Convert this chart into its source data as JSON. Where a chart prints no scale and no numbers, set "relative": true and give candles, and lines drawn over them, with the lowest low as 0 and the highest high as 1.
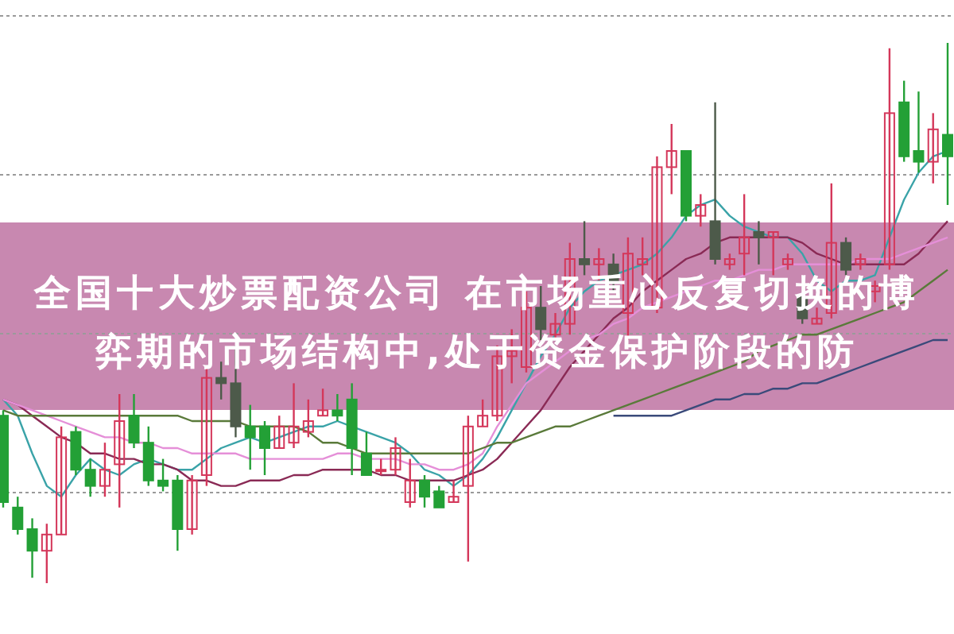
{
  "chart_data": {
    "type": "candlestick",
    "relative": true,
    "grid": "y",
    "title": "全国十大炒票配资公司 在市场重心反复切换的博弈期的市场结构中,处于资金保护阶段的防",
    "categories": [
      null,
      null,
      null,
      null,
      null,
      null,
      null,
      null,
      null,
      null,
      null,
      null,
      null,
      null,
      null,
      null,
      null,
      null,
      null,
      null,
      null,
      null,
      null,
      null,
      null,
      null,
      null,
      null,
      null,
      null,
      null,
      null,
      null,
      null,
      null,
      null,
      null,
      null,
      null,
      null,
      null,
      null,
      null,
      null,
      null,
      null,
      null,
      null,
      null,
      null,
      null,
      null,
      null,
      null,
      null,
      null,
      null,
      null,
      null,
      null,
      null,
      null,
      null,
      null,
      null,
      null
    ],
    "ohlc": [
      [
        0.31,
        0.32,
        0.14,
        0.15
      ],
      [
        0.14,
        0.16,
        0.09,
        0.1
      ],
      [
        0.1,
        0.12,
        0.01,
        0.06
      ],
      [
        0.06,
        0.11,
        0.0,
        0.09
      ],
      [
        0.09,
        0.29,
        0.09,
        0.27
      ],
      [
        0.28,
        0.29,
        0.2,
        0.21
      ],
      [
        0.21,
        0.23,
        0.16,
        0.18
      ],
      [
        0.18,
        0.26,
        0.16,
        0.21
      ],
      [
        0.22,
        0.35,
        0.14,
        0.3
      ],
      [
        0.31,
        0.35,
        0.25,
        0.26
      ],
      [
        0.26,
        0.29,
        0.18,
        0.19
      ],
      [
        0.19,
        0.23,
        0.17,
        0.18
      ],
      [
        0.19,
        0.2,
        0.06,
        0.1
      ],
      [
        0.1,
        0.2,
        0.09,
        0.19
      ],
      [
        0.2,
        0.4,
        0.18,
        0.38
      ],
      [
        0.38,
        0.41,
        0.34,
        0.37
      ],
      [
        0.37,
        0.44,
        0.27,
        0.29
      ],
      [
        0.29,
        0.33,
        0.21,
        0.27
      ],
      [
        0.29,
        0.3,
        0.2,
        0.25
      ],
      [
        0.25,
        0.31,
        0.25,
        0.29
      ],
      [
        0.26,
        0.37,
        0.25,
        0.29
      ],
      [
        0.28,
        0.34,
        0.27,
        0.3
      ],
      [
        0.31,
        0.36,
        0.31,
        0.32
      ],
      [
        0.32,
        0.35,
        0.3,
        0.31
      ],
      [
        0.34,
        0.37,
        0.2,
        0.25
      ],
      [
        0.24,
        0.28,
        0.2,
        0.2
      ],
      [
        0.21,
        0.23,
        0.2,
        0.21
      ],
      [
        0.21,
        0.27,
        0.2,
        0.25
      ],
      [
        0.15,
        0.23,
        0.14,
        0.19
      ],
      [
        0.19,
        0.2,
        0.14,
        0.16
      ],
      [
        0.17,
        0.18,
        0.14,
        0.14
      ],
      [
        0.15,
        0.19,
        0.15,
        0.16
      ],
      [
        0.18,
        0.31,
        0.04,
        0.29
      ],
      [
        0.29,
        0.34,
        0.29,
        0.31
      ],
      [
        0.31,
        0.44,
        0.3,
        0.42
      ],
      [
        0.42,
        0.47,
        0.37,
        0.43
      ],
      [
        0.4,
        0.54,
        0.39,
        0.51
      ],
      [
        0.51,
        0.55,
        0.45,
        0.47
      ],
      [
        0.46,
        0.5,
        0.45,
        0.48
      ],
      [
        0.48,
        0.63,
        0.46,
        0.6
      ],
      [
        0.6,
        0.67,
        0.57,
        0.59
      ],
      [
        0.59,
        0.62,
        0.56,
        0.6
      ],
      [
        0.59,
        0.61,
        0.54,
        0.56
      ],
      [
        0.5,
        0.64,
        0.45,
        0.61
      ],
      [
        0.59,
        0.64,
        0.57,
        0.6
      ],
      [
        0.51,
        0.79,
        0.5,
        0.77
      ],
      [
        0.77,
        0.85,
        0.72,
        0.8
      ],
      [
        0.8,
        0.8,
        0.67,
        0.68
      ],
      [
        0.68,
        0.72,
        0.66,
        0.7
      ],
      [
        0.67,
        0.89,
        0.59,
        0.6
      ],
      [
        0.59,
        0.61,
        0.58,
        0.6
      ],
      [
        0.61,
        0.72,
        0.57,
        0.64
      ],
      [
        0.65,
        0.67,
        0.59,
        0.64
      ],
      [
        0.64,
        0.65,
        0.57,
        0.65
      ],
      [
        0.59,
        0.61,
        0.58,
        0.6
      ],
      [
        0.53,
        0.53,
        0.48,
        0.49
      ],
      [
        0.48,
        0.51,
        0.48,
        0.49
      ],
      [
        0.5,
        0.74,
        0.49,
        0.63
      ],
      [
        0.63,
        0.64,
        0.57,
        0.58
      ],
      [
        0.59,
        0.61,
        0.58,
        0.6
      ],
      [
        0.54,
        0.56,
        0.52,
        0.55
      ],
      [
        0.59,
        0.99,
        0.58,
        0.87
      ],
      [
        0.89,
        0.93,
        0.78,
        0.79
      ],
      [
        0.8,
        0.91,
        0.76,
        0.78
      ],
      [
        0.78,
        0.87,
        0.74,
        0.84
      ],
      [
        0.83,
        1.0,
        0.7,
        0.79
      ]
    ],
    "colors": [
      "#23a036",
      "#23a036",
      "#23a036",
      "#d4375a",
      "#d4375a",
      "#23a036",
      "#23a036",
      "#d4375a",
      "#d4375a",
      "#23a036",
      "#23a036",
      "#23a036",
      "#23a036",
      "#d4375a",
      "#d4375a",
      "#4d5a4a",
      "#4d5a4a",
      "#23a036",
      "#23a036",
      "#d4375a",
      "#d4375a",
      "#d4375a",
      "#d4375a",
      "#23a036",
      "#23a036",
      "#23a036",
      "#d4375a",
      "#d4375a",
      "#d4375a",
      "#23a036",
      "#23a036",
      "#d4375a",
      "#d4375a",
      "#d4375a",
      "#d4375a",
      "#d4375a",
      "#d4375a",
      "#4d5a4a",
      "#d4375a",
      "#d4375a",
      "#4d5a4a",
      "#d4375a",
      "#4d5a4a",
      "#d4375a",
      "#d4375a",
      "#d4375a",
      "#d4375a",
      "#23a036",
      "#d4375a",
      "#4d5a4a",
      "#d4375a",
      "#d4375a",
      "#4d5a4a",
      "#d4375a",
      "#d4375a",
      "#4d5a4a",
      "#d4375a",
      "#d4375a",
      "#4d5a4a",
      "#d4375a",
      "#d4375a",
      "#d4375a",
      "#23a036",
      "#23a036",
      "#d4375a",
      "#23a036"
    ],
    "series": [
      {
        "type": "line",
        "color": "#3aa3a8",
        "values": [
          0.34,
          0.31,
          0.24,
          0.18,
          0.16,
          0.2,
          0.23,
          0.21,
          0.2,
          0.22,
          0.23,
          0.22,
          0.21,
          0.21,
          0.23,
          0.25,
          0.26,
          0.27,
          0.26,
          0.27,
          0.28,
          0.29,
          0.29,
          0.3,
          0.29,
          0.28,
          0.27,
          0.26,
          0.24,
          0.21,
          0.2,
          0.18,
          0.2,
          0.23,
          0.27,
          0.32,
          0.37,
          0.42,
          0.46,
          0.51,
          0.54,
          0.56,
          0.57,
          0.58,
          0.59,
          0.61,
          0.64,
          0.68,
          0.7,
          0.71,
          0.68,
          0.66,
          0.65,
          0.64,
          0.64,
          0.61,
          0.56,
          0.54,
          0.56,
          0.56,
          0.57,
          0.64,
          0.71,
          0.76,
          0.79,
          0.8
        ]
      },
      {
        "type": "line",
        "color": "#8a2a55",
        "values": [
          0.34,
          0.33,
          0.31,
          0.29,
          0.27,
          0.26,
          0.24,
          0.24,
          0.23,
          0.23,
          0.22,
          0.22,
          0.21,
          0.19,
          0.19,
          0.18,
          0.18,
          0.19,
          0.19,
          0.19,
          0.2,
          0.2,
          0.21,
          0.21,
          0.21,
          0.21,
          0.2,
          0.2,
          0.19,
          0.19,
          0.19,
          0.19,
          0.2,
          0.21,
          0.23,
          0.26,
          0.29,
          0.32,
          0.36,
          0.4,
          0.43,
          0.46,
          0.49,
          0.51,
          0.54,
          0.56,
          0.58,
          0.6,
          0.61,
          0.63,
          0.64,
          0.64,
          0.64,
          0.64,
          0.64,
          0.63,
          0.61,
          0.6,
          0.59,
          0.59,
          0.59,
          0.59,
          0.59,
          0.61,
          0.64,
          0.67
        ]
      },
      {
        "type": "line",
        "color": "#e58fd8",
        "values": [
          0.34,
          0.33,
          0.32,
          0.31,
          0.3,
          0.29,
          0.28,
          0.27,
          0.27,
          0.26,
          0.26,
          0.25,
          0.25,
          0.24,
          0.24,
          0.24,
          0.24,
          0.23,
          0.23,
          0.23,
          0.23,
          0.23,
          0.23,
          0.24,
          0.24,
          0.23,
          0.23,
          0.23,
          0.22,
          0.22,
          0.21,
          0.21,
          0.22,
          0.24,
          0.29,
          0.33,
          0.37,
          0.39,
          0.41,
          0.43,
          0.45,
          0.46,
          0.48,
          0.49,
          0.51,
          0.52,
          0.53,
          0.54,
          0.55,
          0.56,
          0.56,
          0.57,
          0.58,
          0.58,
          0.59,
          0.59,
          0.59,
          0.59,
          0.59,
          0.6,
          0.6,
          0.6,
          0.61,
          0.62,
          0.63,
          0.64
        ]
      },
      {
        "type": "line",
        "color": "#5a7a3a",
        "values": [
          0.32,
          0.31,
          0.31,
          0.31,
          0.31,
          0.31,
          0.31,
          0.31,
          0.31,
          0.31,
          0.31,
          0.31,
          0.31,
          0.3,
          0.3,
          0.3,
          0.3,
          0.29,
          0.29,
          0.29,
          0.29,
          0.28,
          0.26,
          0.26,
          0.25,
          0.24,
          0.24,
          0.24,
          0.24,
          0.24,
          0.24,
          0.24,
          0.24,
          0.25,
          0.26,
          0.26,
          0.27,
          0.28,
          0.29,
          0.29,
          0.3,
          0.31,
          0.32,
          0.33,
          0.34,
          0.35,
          0.36,
          0.37,
          0.38,
          0.39,
          0.4,
          0.41,
          0.43,
          0.44,
          0.45,
          0.46,
          0.46,
          0.47,
          0.48,
          0.49,
          0.5,
          0.51,
          0.52,
          0.54,
          0.56,
          0.58
        ]
      },
      {
        "type": "line",
        "color": "#3a4a7a",
        "values": [
          null,
          null,
          null,
          null,
          null,
          null,
          null,
          null,
          null,
          null,
          null,
          null,
          null,
          null,
          null,
          null,
          null,
          null,
          null,
          null,
          null,
          null,
          null,
          null,
          null,
          null,
          null,
          null,
          null,
          null,
          null,
          null,
          null,
          null,
          null,
          null,
          null,
          null,
          null,
          null,
          null,
          null,
          0.31,
          0.31,
          0.31,
          0.31,
          0.31,
          0.32,
          0.33,
          0.34,
          0.34,
          0.35,
          0.35,
          0.36,
          0.36,
          0.37,
          0.37,
          0.38,
          0.39,
          0.4,
          0.41,
          0.42,
          0.43,
          0.44,
          0.45,
          0.45
        ]
      }
    ]
  }
}
